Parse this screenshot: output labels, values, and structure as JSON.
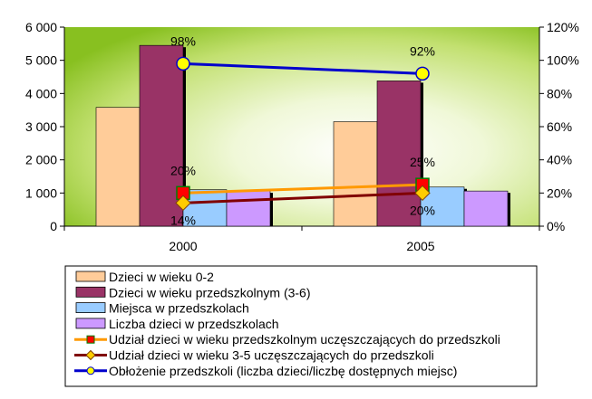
{
  "chart_data": {
    "type": "bar",
    "categories": [
      "2000",
      "2005"
    ],
    "y_left": {
      "range": [
        0,
        6000
      ],
      "ticks": [
        0,
        1000,
        2000,
        3000,
        4000,
        5000,
        6000
      ],
      "tick_labels": [
        "0",
        "1 000",
        "2 000",
        "3 000",
        "4 000",
        "5 000",
        "6 000"
      ]
    },
    "y_right": {
      "range": [
        0,
        120
      ],
      "ticks": [
        0,
        20,
        40,
        60,
        80,
        100,
        120
      ],
      "tick_labels": [
        "0%",
        "20%",
        "40%",
        "60%",
        "80%",
        "100%",
        "120%"
      ]
    },
    "bar_series": [
      {
        "name": "Dzieci w wieku 0-2",
        "values": [
          3580,
          3150
        ],
        "color": "#FFCC99"
      },
      {
        "name": "Dzieci w wieku przedszkolnym (3-6)",
        "values": [
          5450,
          4380
        ],
        "color": "#993366"
      },
      {
        "name": "Miejsca w przedszkolach",
        "values": [
          1100,
          1180
        ],
        "color": "#99CCFF"
      },
      {
        "name": "Liczba dzieci w przedszkolach",
        "values": [
          1060,
          1060
        ],
        "color": "#CC99FF"
      }
    ],
    "line_series": [
      {
        "name": "Udział dzieci w wieku przedszkolnym uczęszczających do przedszkoli",
        "values": [
          20,
          25
        ],
        "labels": [
          "20%",
          "25%"
        ],
        "color": "#FF9900",
        "marker": "square",
        "marker_fill": "#FF0000"
      },
      {
        "name": "Udział dzieci w wieku 3-5 uczęszczających do przedszkoli",
        "values": [
          14,
          20
        ],
        "labels": [
          "14%",
          "20%"
        ],
        "color": "#800000",
        "marker": "diamond",
        "marker_fill": "#FFCC00"
      },
      {
        "name": "Obłożenie przedszkoli (liczba dzieci/liczbę dostępnych miejsc)",
        "values": [
          98,
          92
        ],
        "labels": [
          "98%",
          "92%"
        ],
        "color": "#0000CC",
        "marker": "circle",
        "marker_fill": "#FFFF00"
      }
    ],
    "legend_position": "bottom",
    "background": "green-to-white gradient"
  }
}
